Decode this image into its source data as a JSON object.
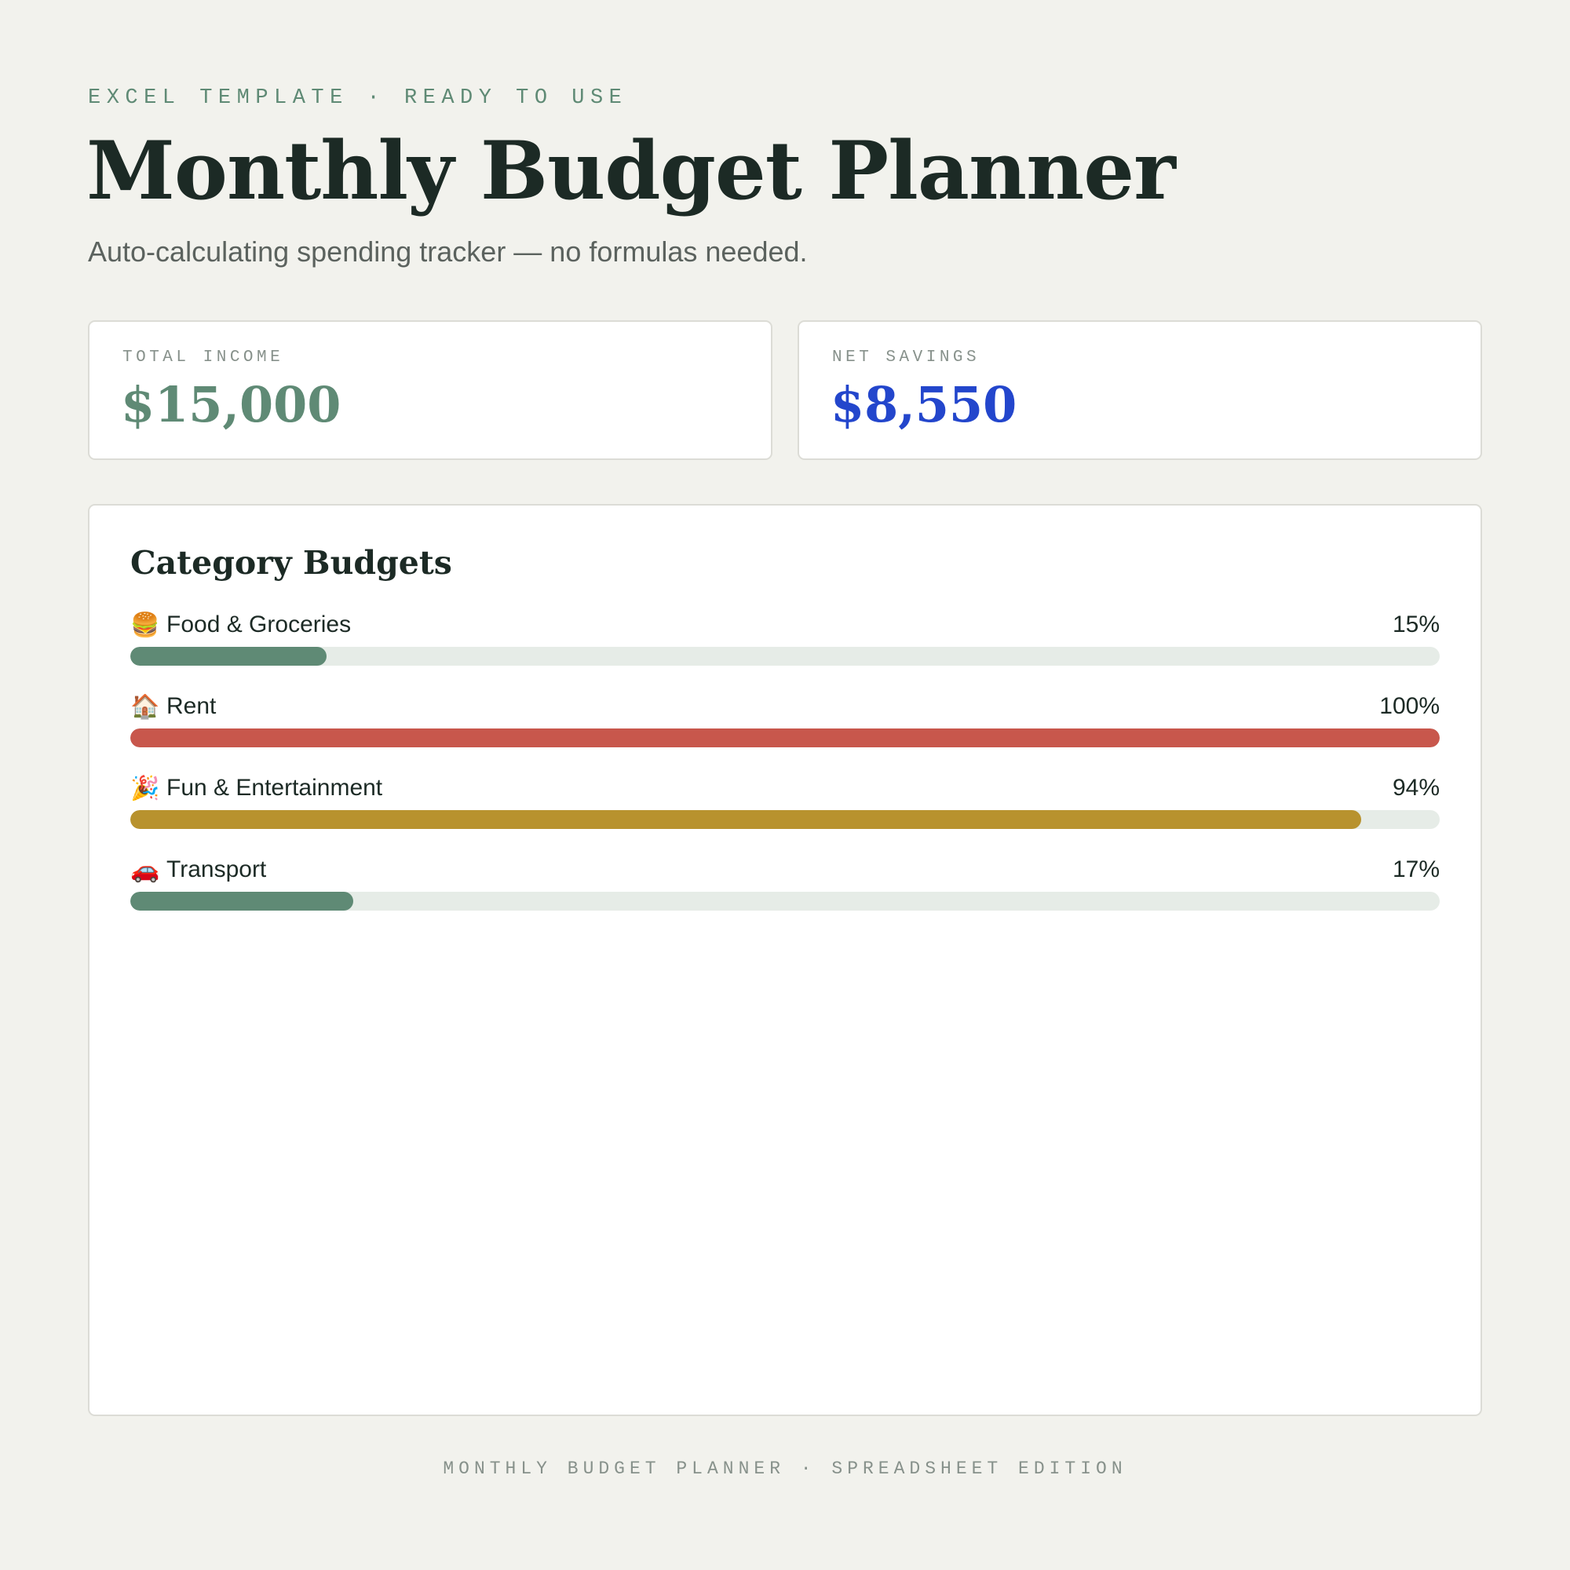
{
  "header": {
    "eyebrow": "EXCEL TEMPLATE · READY TO USE",
    "title": "Monthly Budget Planner",
    "subtitle": "Auto-calculating spending tracker — no formulas needed."
  },
  "stats": {
    "income": {
      "label": "TOTAL INCOME",
      "value": "$15,000",
      "color": "#5f8a75"
    },
    "savings": {
      "label": "NET SAVINGS",
      "value": "$8,550",
      "color": "#2346cc"
    }
  },
  "budgets": {
    "heading": "Category Budgets",
    "items": [
      {
        "icon": "🍔",
        "icon_name": "burger-icon",
        "name": "Food & Groceries",
        "percent_label": "15%",
        "fraction": 0.15,
        "color": "#5f8a75"
      },
      {
        "icon": "🏠",
        "icon_name": "house-icon",
        "name": "Rent",
        "percent_label": "100%",
        "fraction": 1.0,
        "color": "#c8574c"
      },
      {
        "icon": "🎉",
        "icon_name": "party-popper-icon",
        "name": "Fun & Entertainment",
        "percent_label": "94%",
        "fraction": 0.94,
        "color": "#b8922e"
      },
      {
        "icon": "🚗",
        "icon_name": "car-icon",
        "name": "Transport",
        "percent_label": "17%",
        "fraction": 0.17,
        "color": "#5f8a75"
      }
    ]
  },
  "footer": {
    "text": "MONTHLY BUDGET PLANNER · SPREADSHEET EDITION"
  }
}
